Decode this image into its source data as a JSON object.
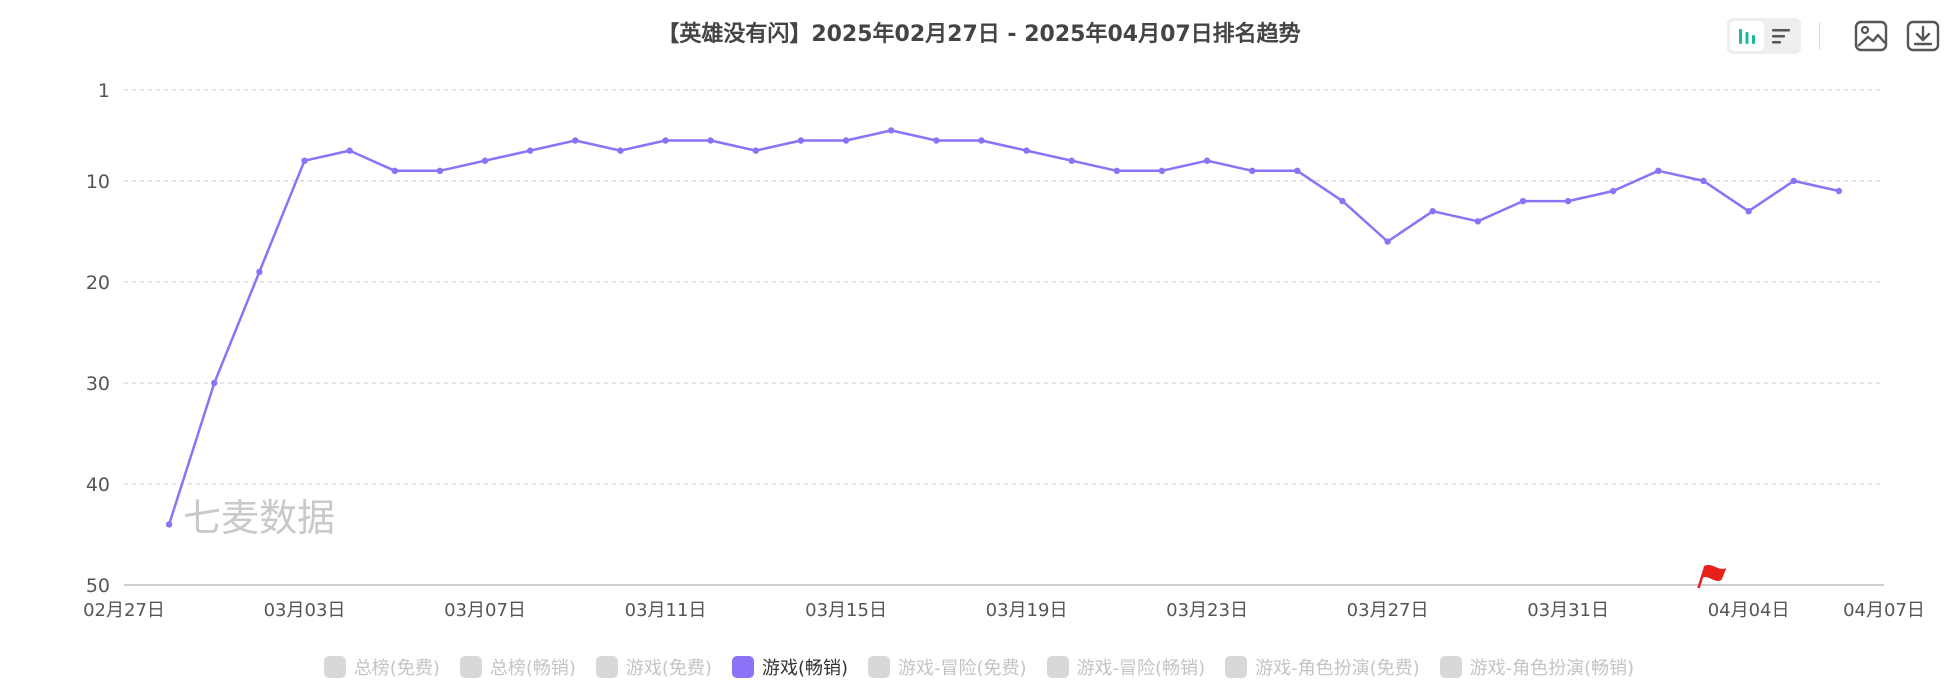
{
  "title": "【英雄没有闪】2025年02月27日 - 2025年04月07日排名趋势",
  "watermark": "七麦数据",
  "toolbar": {
    "icons": [
      "bar-chart-icon",
      "list-icon",
      "image-icon",
      "download-icon"
    ]
  },
  "legend": [
    {
      "label": "总榜(免费)",
      "active": false
    },
    {
      "label": "总榜(畅销)",
      "active": false
    },
    {
      "label": "游戏(免费)",
      "active": false
    },
    {
      "label": "游戏(畅销)",
      "active": true
    },
    {
      "label": "游戏-冒险(免费)",
      "active": false
    },
    {
      "label": "游戏-冒险(畅销)",
      "active": false
    },
    {
      "label": "游戏-角色扮演(免费)",
      "active": false
    },
    {
      "label": "游戏-角色扮演(畅销)",
      "active": false
    }
  ],
  "colors": {
    "series": "#8b72f6",
    "grid": "#cccccc",
    "axis_text": "#555555",
    "flag": "#e8201c",
    "legend_inactive": "#d8d8d8"
  },
  "chart_data": {
    "type": "line",
    "title": "【英雄没有闪】2025年02月27日 - 2025年04月07日排名趋势",
    "y_inverted": true,
    "ylim": [
      1,
      50
    ],
    "yticks": [
      1,
      10,
      20,
      30,
      40,
      50
    ],
    "xlim": [
      "02月27日",
      "04月07日"
    ],
    "xticks": [
      "02月27日",
      "03月03日",
      "03月07日",
      "03月11日",
      "03月15日",
      "03月19日",
      "03月23日",
      "03月27日",
      "03月31日",
      "04月04日",
      "04月07日"
    ],
    "grid": true,
    "legend_position": "bottom",
    "markers": [
      {
        "type": "flag",
        "x": "04月03日"
      }
    ],
    "series": [
      {
        "name": "游戏(畅销)",
        "x": [
          "02月28日",
          "03月01日",
          "03月02日",
          "03月03日",
          "03月04日",
          "03月05日",
          "03月06日",
          "03月07日",
          "03月08日",
          "03月09日",
          "03月10日",
          "03月11日",
          "03月12日",
          "03月13日",
          "03月14日",
          "03月15日",
          "03月16日",
          "03月17日",
          "03月18日",
          "03月19日",
          "03月20日",
          "03月21日",
          "03月22日",
          "03月23日",
          "03月24日",
          "03月25日",
          "03月26日",
          "03月27日",
          "03月28日",
          "03月29日",
          "03月30日",
          "03月31日",
          "04月01日",
          "04月02日",
          "04月03日",
          "04月04日",
          "04月05日",
          "04月06日"
        ],
        "values": [
          44,
          30,
          19,
          8,
          7,
          9,
          9,
          8,
          7,
          6,
          7,
          6,
          6,
          7,
          6,
          6,
          5,
          6,
          6,
          7,
          8,
          9,
          9,
          8,
          9,
          9,
          12,
          16,
          13,
          14,
          12,
          12,
          11,
          9,
          10,
          13,
          10,
          11
        ]
      }
    ]
  }
}
